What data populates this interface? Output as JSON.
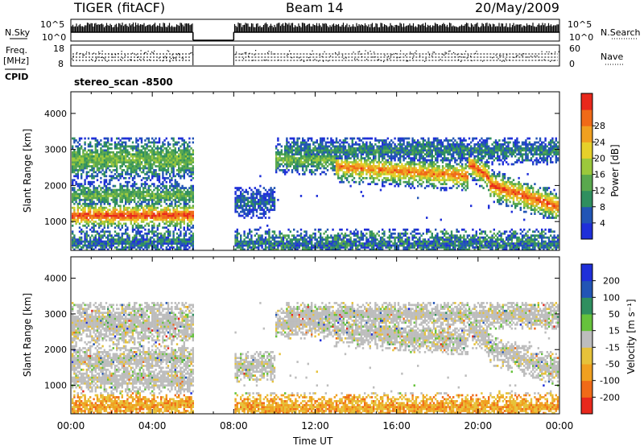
{
  "header": {
    "title": "TIGER (fitACF)",
    "beam": "Beam 14",
    "date": "20/May/2009"
  },
  "top_panels": {
    "nsky_label": "N.Sky",
    "nsearch_label": "N.Search",
    "freq_label_1": "Freq.",
    "freq_label_2": "[MHz]",
    "nave_label": "Nave",
    "cpid_label": "CPID",
    "cpid_value": "stereo_scan -8500",
    "noise_ticks": [
      "10^5",
      "10^0"
    ],
    "freq_ticks": [
      "18",
      "8"
    ],
    "nave_ticks": [
      "60",
      "0"
    ]
  },
  "chart_data": [
    {
      "type": "heatmap",
      "name": "power",
      "ylabel": "Slant Range [km]",
      "yticks": [
        1000,
        2000,
        3000,
        4000
      ],
      "ylim": [
        200,
        4600
      ],
      "colorbar_label": "Power [dB]",
      "colorbar_ticks": [
        4,
        8,
        12,
        16,
        20,
        24,
        28
      ],
      "colorbar_colors": [
        "#1f2fd9",
        "#2255b5",
        "#2f8f5f",
        "#5aa84e",
        "#9cc83c",
        "#e6d02a",
        "#f0a020",
        "#f06a18",
        "#e8281c"
      ],
      "data_gap_ut": [
        "06:00",
        "08:00"
      ]
    },
    {
      "type": "heatmap",
      "name": "velocity",
      "ylabel": "Slant Range [km]",
      "yticks": [
        1000,
        2000,
        3000,
        4000
      ],
      "ylim": [
        200,
        4600
      ],
      "colorbar_label": "Velocity [m s⁻¹]",
      "colorbar_ticks": [
        -200,
        -100,
        -50,
        -15,
        15,
        50,
        100,
        200
      ],
      "colorbar_colors": [
        "#e8281c",
        "#f06a18",
        "#f0a020",
        "#e6c23a",
        "#bdbdbd",
        "#66c23c",
        "#2f8f5f",
        "#2255b5",
        "#1f2fd9"
      ],
      "data_gap_ut": [
        "06:00",
        "08:00"
      ]
    }
  ],
  "xaxis": {
    "label": "Time UT",
    "ticks": [
      "00:00",
      "04:00",
      "08:00",
      "12:00",
      "16:00",
      "20:00",
      "00:00"
    ]
  }
}
